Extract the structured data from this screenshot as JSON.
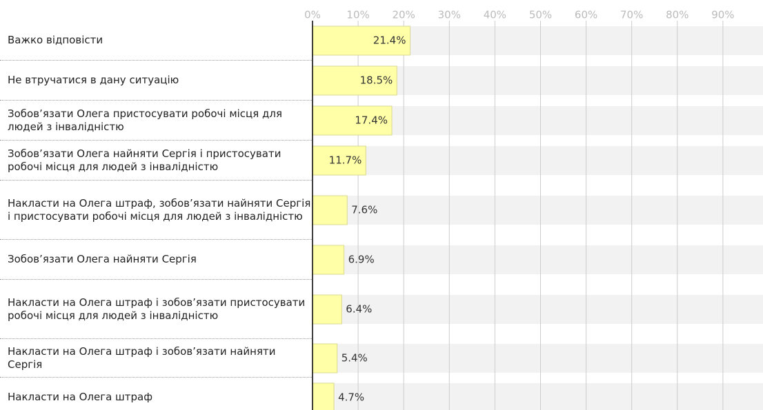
{
  "chart_data": {
    "type": "bar",
    "orientation": "horizontal",
    "categories": [
      "Важко відповісти",
      "Не втручатися в дану ситуацію",
      "Зобов’язати Олега пристосувати робочі місця для людей з інвалідністю",
      "Зобов’язати Олега найняти Сергія і пристосувати робочі місця для людей з інвалідністю",
      "Накласти на Олега штраф, зобов’язати найняти Сергія і пристосувати робочі місця для людей з інвалідністю",
      "Зобов’язати Олега найняти Сергія",
      "Накласти на Олега штраф і зобов’язати пристосувати робочі місця для людей з інвалідністю",
      "Накласти на Олега штраф і зобов’язати найняти Сергія",
      "Накласти на Олега штраф"
    ],
    "values": [
      21.4,
      18.5,
      17.4,
      11.7,
      7.6,
      6.9,
      6.4,
      5.4,
      4.7
    ],
    "value_labels": [
      "21.4%",
      "18.5%",
      "17.4%",
      "11.7%",
      "7.6%",
      "6.9%",
      "6.4%",
      "5.4%",
      "4.7%"
    ],
    "color": "#ffffa8",
    "xlim": [
      0,
      100
    ],
    "xticks": [
      {
        "value": 0,
        "label": "0%"
      },
      {
        "value": 10,
        "label": "10%"
      },
      {
        "value": 20,
        "label": "20%"
      },
      {
        "value": 30,
        "label": "30%"
      },
      {
        "value": 40,
        "label": "40%"
      },
      {
        "value": 50,
        "label": "50%"
      },
      {
        "value": 60,
        "label": "60%"
      },
      {
        "value": 70,
        "label": "70%"
      },
      {
        "value": 80,
        "label": "80%"
      },
      {
        "value": 90,
        "label": "90%"
      }
    ],
    "grid": true
  }
}
